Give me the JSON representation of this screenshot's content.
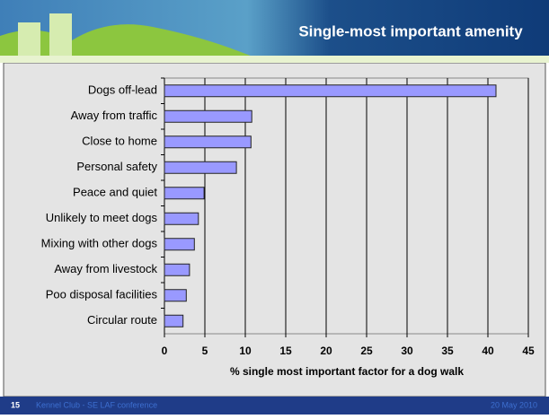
{
  "chart_data": {
    "type": "bar",
    "orientation": "horizontal",
    "title": "Single-most important amenity",
    "x_label": "% single most important factor for a dog walk",
    "categories": [
      "Dogs off-lead",
      "Away from traffic",
      "Close to home",
      "Personal safety",
      "Peace and quiet",
      "Unlikely to meet dogs",
      "Mixing with other dogs",
      "Away from livestock",
      "Poo disposal facilities",
      "Circular route"
    ],
    "values": [
      41,
      10.8,
      10.7,
      8.9,
      4.9,
      4.2,
      3.7,
      3.1,
      2.7,
      2.3
    ],
    "color": "#9999ff",
    "xlim": [
      0,
      45
    ],
    "xticks": [
      0,
      5,
      10,
      15,
      20,
      25,
      30,
      35,
      40,
      45
    ],
    "grid": true
  },
  "footer": {
    "page": "15",
    "event": "Kennel Club - SE LAF conference",
    "date": "20 May 2010"
  }
}
